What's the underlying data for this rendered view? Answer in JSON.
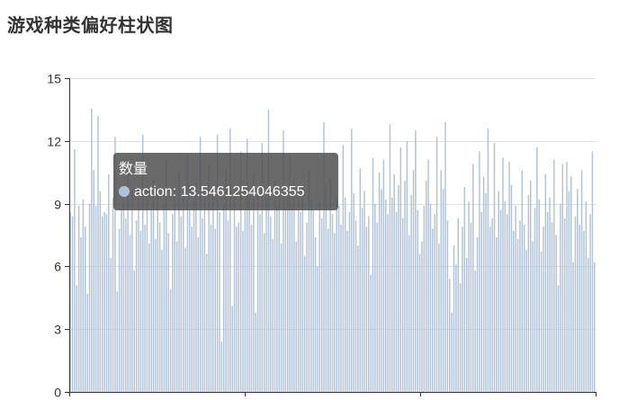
{
  "title": "游戏种类偏好柱状图",
  "tooltip": {
    "title": "数量",
    "category": "action",
    "value": "13.5461254046355",
    "marker_color": "#b0c0d8"
  },
  "colors": {
    "bar": "#b0c3db",
    "axis": "#333333",
    "grid": "#e0e0e0"
  },
  "chart_data": {
    "type": "bar",
    "title": "游戏种类偏好柱状图",
    "xlabel": "",
    "ylabel": "",
    "ylim": [
      0,
      15
    ],
    "yticks": [
      0,
      3,
      6,
      9,
      12,
      15
    ],
    "grid": true,
    "series": [
      {
        "name": "数量",
        "values": [
          8.6,
          8.4,
          11.6,
          5.1,
          8.9,
          7.4,
          9.2,
          7.9,
          4.7,
          9.0,
          13.55,
          10.6,
          8.9,
          13.2,
          9.6,
          8.4,
          8.6,
          8.5,
          10.4,
          6.4,
          9.3,
          12.2,
          4.8,
          7.8,
          8.7,
          9.1,
          8.3,
          10.8,
          7.5,
          9.7,
          5.8,
          8.2,
          9.4,
          7.7,
          12.3,
          8.0,
          9.9,
          7.1,
          8.8,
          10.2,
          7.3,
          9.6,
          8.1,
          6.8,
          9.0,
          11.1,
          7.6,
          4.9,
          8.5,
          9.8,
          7.2,
          10.5,
          8.4,
          9.3,
          6.9,
          11.4,
          8.7,
          7.9,
          9.1,
          10.0,
          7.4,
          12.2,
          8.3,
          9.5,
          6.6,
          10.9,
          8.0,
          9.7,
          7.8,
          12.3,
          8.6,
          2.4,
          9.0,
          10.7,
          8.2,
          12.6,
          4.1,
          9.6,
          7.9,
          8.1,
          11.5,
          7.7,
          8.8,
          12.1,
          9.3,
          8.0,
          10.4,
          3.8,
          9.7,
          8.5,
          11.9,
          7.6,
          9.2,
          13.5,
          8.4,
          7.3,
          10.1,
          8.9,
          9.5,
          7.1,
          12.5,
          8.8,
          9.6,
          11.3,
          9.0,
          10.3,
          7.2,
          9.4,
          8.6,
          9.8,
          6.5,
          8.1,
          10.6,
          9.2,
          8.7,
          7.4,
          6.0,
          9.1,
          8.3,
          12.9,
          9.9,
          7.8,
          10.2,
          8.5,
          7.6,
          9.4,
          8.9,
          8.0,
          11.8,
          9.3,
          7.7,
          8.6,
          12.6,
          9.5,
          8.2,
          7.0,
          10.7,
          8.8,
          9.6,
          7.9,
          8.4,
          5.6,
          11.2,
          9.0,
          8.1,
          10.5,
          9.7,
          11.1,
          9.2,
          8.5,
          12.8,
          9.3,
          10.4,
          8.6,
          9.9,
          11.7,
          8.3,
          10.1,
          12.0,
          7.5,
          9.4,
          10.6,
          12.5,
          8.7,
          6.6,
          7.2,
          8.9,
          10.1,
          11.1,
          9.0,
          7.8,
          8.5,
          12.2,
          7.1,
          10.6,
          9.7,
          12.9,
          8.2,
          5.4,
          3.8,
          7.0,
          6.1,
          8.3,
          5.2,
          7.9,
          9.8,
          6.4,
          9.1,
          8.1,
          10.9,
          5.8,
          7.4,
          11.5,
          8.6,
          10.3,
          9.5,
          12.6,
          7.9,
          8.3,
          11.9,
          7.4,
          9.6,
          8.7,
          11.2,
          9.1,
          8.5,
          11.0,
          9.9,
          7.7,
          8.9,
          7.3,
          8.2,
          10.6,
          8.0,
          6.8,
          9.4,
          10.1,
          7.2,
          8.8,
          11.7,
          9.2,
          6.7,
          7.9,
          10.4,
          8.6,
          9.3,
          8.1,
          11.1,
          7.5,
          5.1,
          9.0,
          10.9,
          8.3,
          11.0,
          9.6,
          10.3,
          6.2,
          8.4,
          9.7,
          8.0,
          10.6,
          7.7,
          9.1,
          6.4,
          8.5,
          11.5,
          6.2
        ]
      }
    ]
  }
}
